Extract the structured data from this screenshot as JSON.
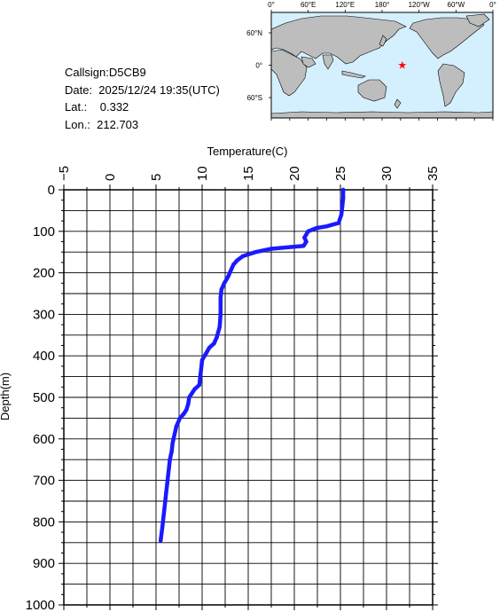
{
  "station": {
    "callsign": "Callsign:D5CB9",
    "date": "Date:  2025/12/24 19:35(UTC)",
    "lat": "Lat.:    0.332",
    "lon": "Lon.:  212.703"
  },
  "map": {
    "lon_labels": [
      "0°",
      "60°E",
      "120°E",
      "180°",
      "120°W",
      "60°W",
      "0°"
    ],
    "lat_labels": [
      "60°N",
      "0°",
      "60°S"
    ],
    "marker": {
      "lat": 0.332,
      "lon": 212.703,
      "color": "#ff0000"
    },
    "ocean_color": "#d4f0ff",
    "land_color": "#bdbdbd"
  },
  "chart_data": {
    "type": "line",
    "title": "",
    "xlabel": "Temperature(C)",
    "ylabel": "Depth(m)",
    "xlim": [
      -5,
      35
    ],
    "ylim": [
      1000,
      0
    ],
    "x_ticks": [
      "−5",
      "0",
      "5",
      "10",
      "15",
      "20",
      "25",
      "30",
      "35"
    ],
    "y_ticks": [
      "0",
      "100",
      "200",
      "300",
      "400",
      "500",
      "600",
      "700",
      "800",
      "900",
      "1000"
    ],
    "grid": true,
    "line_color": "#1a1aff",
    "series": [
      {
        "x": [
          25.3,
          25.3,
          25.2,
          25.1,
          24.8,
          23.5,
          22.4,
          21.5,
          21.1,
          21.3,
          21.0,
          19.5,
          17.5,
          15.8,
          14.4,
          13.8,
          13.4,
          13.1,
          12.8,
          12.4,
          12.1,
          12.0,
          12.0,
          11.9,
          11.6,
          11.3,
          10.8,
          10.4,
          10.0,
          9.9,
          9.8,
          9.7,
          9.2,
          8.9,
          8.6,
          8.5,
          8.3,
          8.0,
          7.6,
          7.2,
          7.0,
          6.8,
          6.7,
          6.5,
          6.4,
          6.3,
          6.2,
          6.1,
          6.0,
          5.9,
          5.8,
          5.7,
          5.5
        ],
        "y": [
          0,
          20,
          40,
          60,
          80,
          88,
          92,
          100,
          115,
          125,
          135,
          138,
          142,
          150,
          160,
          170,
          180,
          195,
          210,
          225,
          240,
          260,
          300,
          330,
          355,
          370,
          380,
          395,
          410,
          430,
          450,
          470,
          480,
          490,
          500,
          515,
          530,
          540,
          550,
          570,
          590,
          610,
          630,
          650,
          670,
          690,
          710,
          730,
          750,
          770,
          790,
          810,
          845
        ]
      }
    ]
  }
}
